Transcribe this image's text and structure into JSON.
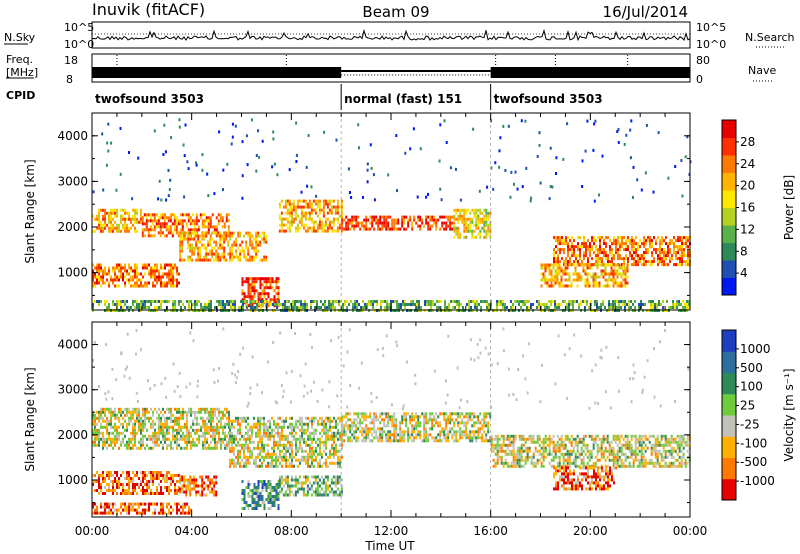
{
  "header": {
    "station": "Inuvik (fitACF)",
    "beam": "Beam 09",
    "date": "16/Jul/2014"
  },
  "strips": {
    "nsky_label": "N.Sky",
    "nsearch_label": "N.Search",
    "nsky_ticks": [
      "10^5",
      "10^0"
    ],
    "freq_label_1": "Freq.",
    "freq_label_2": "[MHz]",
    "freq_ticks": [
      "18",
      "8"
    ],
    "nave_ticks": [
      "80",
      "0"
    ],
    "nave_label": "Nave",
    "cpid_label": "CPID",
    "cpid_segments": [
      {
        "label": "twofsound 3503",
        "start_hour": 0,
        "end_hour": 10
      },
      {
        "label": "normal (fast) 151",
        "start_hour": 10,
        "end_hour": 16
      },
      {
        "label": "twofsound 3503",
        "start_hour": 16,
        "end_hour": 24
      }
    ]
  },
  "chart_data": [
    {
      "type": "heatmap",
      "quantity": "power",
      "ylabel": "Slant Range [km]",
      "xlabel": "Time UT",
      "x_ticks": [
        "00:00",
        "04:00",
        "08:00",
        "12:00",
        "16:00",
        "20:00",
        "00:00"
      ],
      "xlim_hours": [
        0,
        24
      ],
      "y_ticks": [
        1000,
        2000,
        3000,
        4000
      ],
      "ylim": [
        180,
        4500
      ],
      "colorbar": {
        "label": "Power [dB]",
        "ticks": [
          "4",
          "8",
          "12",
          "16",
          "20",
          "24",
          "28"
        ],
        "colors": [
          "#0018f0",
          "#1f4fb0",
          "#2f8a5a",
          "#5ab04a",
          "#b6d220",
          "#ffe600",
          "#ffb400",
          "#ff7a00",
          "#ff3000",
          "#e60000"
        ]
      },
      "echo_bands": [
        {
          "start_hour": 0.0,
          "end_hour": 2.0,
          "range_km": [
            1900,
            2400
          ],
          "level": 6
        },
        {
          "start_hour": 2.0,
          "end_hour": 5.5,
          "range_km": [
            1800,
            2300
          ],
          "level": 7
        },
        {
          "start_hour": 0.0,
          "end_hour": 3.5,
          "range_km": [
            700,
            1200
          ],
          "level": 7
        },
        {
          "start_hour": 3.5,
          "end_hour": 7.0,
          "range_km": [
            1300,
            1900
          ],
          "level": 6
        },
        {
          "start_hour": 6.0,
          "end_hour": 7.5,
          "range_km": [
            300,
            900
          ],
          "level": 8
        },
        {
          "start_hour": 7.5,
          "end_hour": 10.0,
          "range_km": [
            1900,
            2600
          ],
          "level": 6
        },
        {
          "start_hour": 10.0,
          "end_hour": 14.5,
          "range_km": [
            1950,
            2250
          ],
          "level": 8
        },
        {
          "start_hour": 14.5,
          "end_hour": 16.0,
          "range_km": [
            1800,
            2400
          ],
          "level": 5
        },
        {
          "start_hour": 18.5,
          "end_hour": 24.0,
          "range_km": [
            1200,
            1800
          ],
          "level": 7
        },
        {
          "start_hour": 18.0,
          "end_hour": 21.5,
          "range_km": [
            700,
            1200
          ],
          "level": 6
        },
        {
          "start_hour": 0.0,
          "end_hour": 24.0,
          "range_km": [
            180,
            400
          ],
          "level": 3
        }
      ]
    },
    {
      "type": "heatmap",
      "quantity": "velocity",
      "ylabel": "Slant Range [km]",
      "xlabel": "Time UT",
      "x_ticks": [
        "00:00",
        "04:00",
        "08:00",
        "12:00",
        "16:00",
        "20:00",
        "00:00"
      ],
      "xlim_hours": [
        0,
        24
      ],
      "y_ticks": [
        1000,
        2000,
        3000,
        4000
      ],
      "ylim": [
        180,
        4500
      ],
      "colorbar": {
        "label": "Velocity [m s⁻¹]",
        "ticks": [
          "1000",
          "500",
          "100",
          "25",
          "-25",
          "-100",
          "-500",
          "-1000"
        ],
        "colors": [
          "#1b3fbf",
          "#2f6fa0",
          "#2f8a5a",
          "#6ecb3c",
          "#c2c2ba",
          "#ffb000",
          "#ff7a00",
          "#e60000"
        ]
      },
      "echo_bands": [
        {
          "start_hour": 0.0,
          "end_hour": 5.5,
          "range_km": [
            1700,
            2600
          ],
          "level": 4
        },
        {
          "start_hour": 5.5,
          "end_hour": 10.0,
          "range_km": [
            1300,
            2400
          ],
          "level": 4
        },
        {
          "start_hour": 10.0,
          "end_hour": 16.0,
          "range_km": [
            1900,
            2500
          ],
          "level": 4
        },
        {
          "start_hour": 16.0,
          "end_hour": 24.0,
          "range_km": [
            1300,
            2000
          ],
          "level": 4
        },
        {
          "start_hour": 0.0,
          "end_hour": 3.5,
          "range_km": [
            700,
            1200
          ],
          "level": 6
        },
        {
          "start_hour": 3.5,
          "end_hour": 5.0,
          "range_km": [
            700,
            1100
          ],
          "level": 6
        },
        {
          "start_hour": 6.0,
          "end_hour": 7.5,
          "range_km": [
            400,
            1000
          ],
          "level": 2
        },
        {
          "start_hour": 7.5,
          "end_hour": 10.0,
          "range_km": [
            700,
            1100
          ],
          "level": 3
        },
        {
          "start_hour": 18.5,
          "end_hour": 21.0,
          "range_km": [
            800,
            1300
          ],
          "level": 6
        },
        {
          "start_hour": 0.0,
          "end_hour": 4.0,
          "range_km": [
            250,
            500
          ],
          "level": 6
        }
      ]
    }
  ]
}
